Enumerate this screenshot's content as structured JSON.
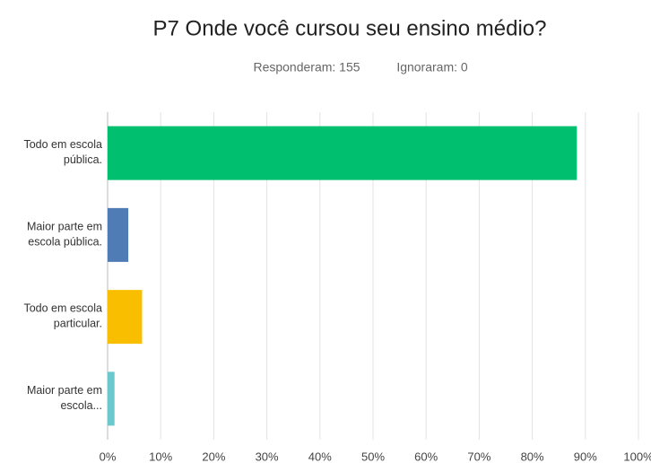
{
  "chart_data": {
    "type": "bar",
    "orientation": "horizontal",
    "title": "P7 Onde você cursou seu ensino médio?",
    "answered": "Responderam: 155",
    "skipped": "Ignoraram: 0",
    "categories": [
      [
        "Todo em escola",
        "pública."
      ],
      [
        "Maior parte em",
        "escola pública."
      ],
      [
        "Todo em escola",
        "particular."
      ],
      [
        "Maior parte em",
        "escola..."
      ]
    ],
    "values": [
      88.4,
      3.9,
      6.5,
      1.3
    ],
    "colors": [
      "#00bf6f",
      "#507cb6",
      "#f9be00",
      "#6bc8cd"
    ],
    "xlim": [
      0,
      100
    ],
    "xticks": [
      {
        "value": 0,
        "label": "0%"
      },
      {
        "value": 10,
        "label": "10%"
      },
      {
        "value": 20,
        "label": "20%"
      },
      {
        "value": 30,
        "label": "30%"
      },
      {
        "value": 40,
        "label": "40%"
      },
      {
        "value": 50,
        "label": "50%"
      },
      {
        "value": 60,
        "label": "60%"
      },
      {
        "value": 70,
        "label": "70%"
      },
      {
        "value": 80,
        "label": "80%"
      },
      {
        "value": 90,
        "label": "90%"
      },
      {
        "value": 100,
        "label": "100%"
      }
    ],
    "grid": true
  }
}
